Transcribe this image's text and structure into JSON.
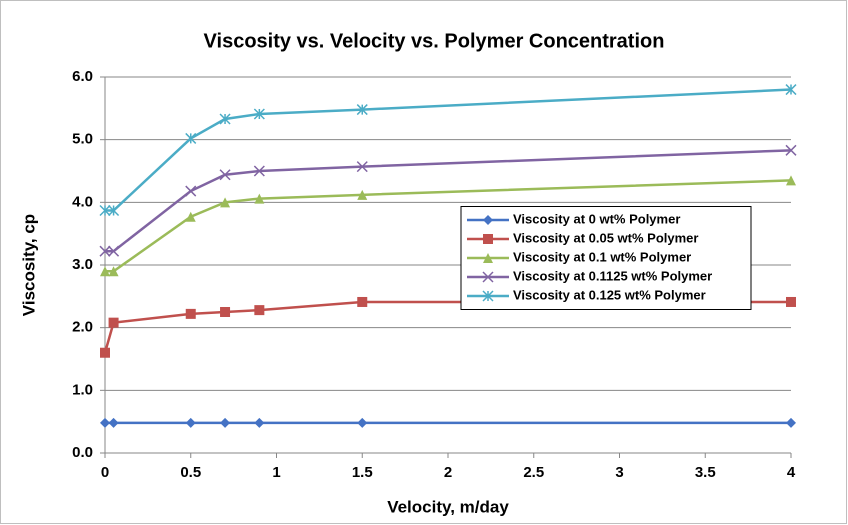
{
  "chart_data": {
    "type": "line",
    "title": "Viscosity vs. Velocity vs. Polymer Concentration",
    "xlabel": "Velocity, m/day",
    "ylabel": "Viscosity, cp",
    "x": [
      0,
      0.05,
      0.5,
      0.7,
      0.9,
      1.5,
      4
    ],
    "series": [
      {
        "name": "Viscosity at 0 wt% Polymer",
        "color": "#4472c4",
        "marker": "diamond",
        "values": [
          0.48,
          0.48,
          0.48,
          0.48,
          0.48,
          0.48,
          0.48
        ]
      },
      {
        "name": "Viscosity at 0.05 wt% Polymer",
        "color": "#c0504d",
        "marker": "square",
        "values": [
          1.6,
          2.08,
          2.22,
          2.25,
          2.28,
          2.41,
          2.41
        ]
      },
      {
        "name": "Viscosity at 0.1 wt% Polymer",
        "color": "#9bbb59",
        "marker": "triangle",
        "values": [
          2.9,
          2.9,
          3.77,
          4.0,
          4.06,
          4.12,
          4.35
        ]
      },
      {
        "name": "Viscosity at 0.1125 wt% Polymer",
        "color": "#8064a2",
        "marker": "x",
        "values": [
          3.22,
          3.22,
          4.18,
          4.44,
          4.5,
          4.57,
          4.83
        ]
      },
      {
        "name": "Viscosity at 0.125 wt% Polymer",
        "color": "#4bacc6",
        "marker": "asterisk",
        "values": [
          3.87,
          3.87,
          5.02,
          5.33,
          5.41,
          5.48,
          5.8
        ]
      }
    ],
    "xlim": [
      0,
      4
    ],
    "xticks": [
      0,
      0.5,
      1,
      1.5,
      2,
      2.5,
      3,
      3.5,
      4
    ],
    "ylim": [
      0,
      6
    ],
    "yticks": [
      {
        "value": 0,
        "label": "0.0"
      },
      {
        "value": 1,
        "label": "1.0"
      },
      {
        "value": 2,
        "label": "2.0"
      },
      {
        "value": 3,
        "label": "3.0"
      },
      {
        "value": 4,
        "label": "4.0"
      },
      {
        "value": 5,
        "label": "5.0"
      },
      {
        "value": 6,
        "label": "6.0"
      }
    ],
    "grid": true,
    "legend_position": "right"
  }
}
